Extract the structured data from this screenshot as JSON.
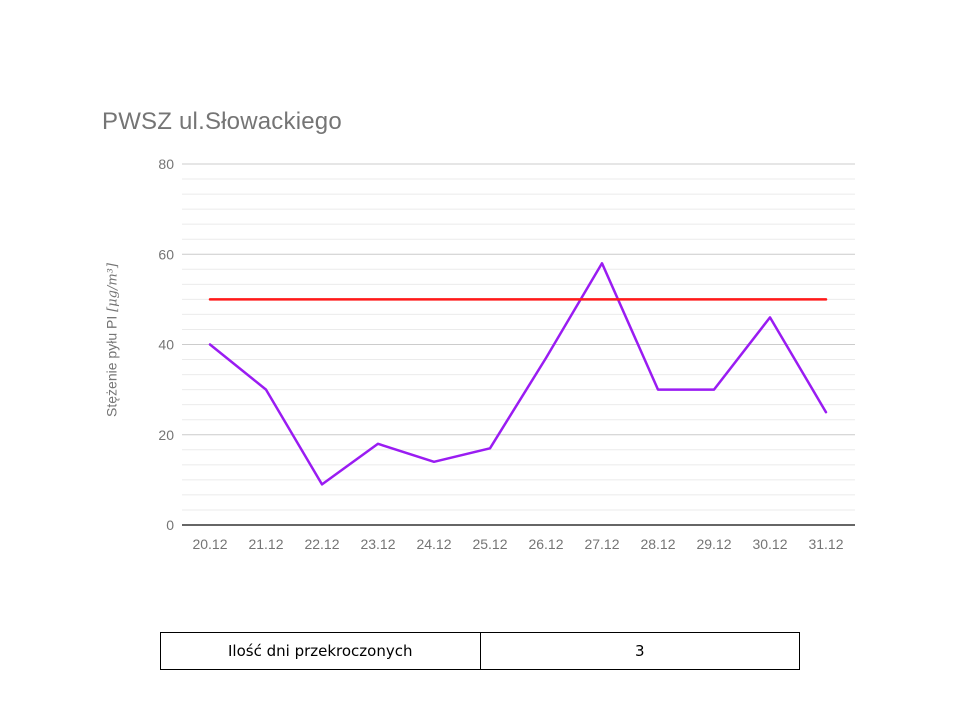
{
  "chart_data": {
    "type": "line",
    "title": "PWSZ ul.Słowackiego",
    "ylabel_prefix": "Stężenie pyłu PI ",
    "ylabel_unit": "[μg/m³]",
    "xlabel": "",
    "categories": [
      "20.12",
      "21.12",
      "22.12",
      "23.12",
      "24.12",
      "25.12",
      "26.12",
      "27.12",
      "28.12",
      "29.12",
      "30.12",
      "31.12"
    ],
    "series": [
      {
        "values": [
          40,
          30,
          9,
          18,
          14,
          17,
          37,
          58,
          30,
          30,
          46,
          25
        ],
        "color": "#9a1cf2"
      },
      {
        "values": [
          50,
          50,
          50,
          50,
          50,
          50,
          50,
          50,
          50,
          50,
          50,
          50
        ],
        "color": "#ff1a1a"
      }
    ],
    "ylim": [
      0,
      80
    ],
    "yticks": [
      0,
      20,
      40,
      60,
      80
    ],
    "minor_gridlines_per_major": 6,
    "grid": true,
    "legend": "none",
    "colors": {
      "axis_text": "#757575",
      "major_grid": "#cccccc",
      "minor_grid": "#ebebeb",
      "baseline": "#333333"
    }
  },
  "summary_table": {
    "label": "Ilość dni przekroczonych",
    "value": "3"
  }
}
